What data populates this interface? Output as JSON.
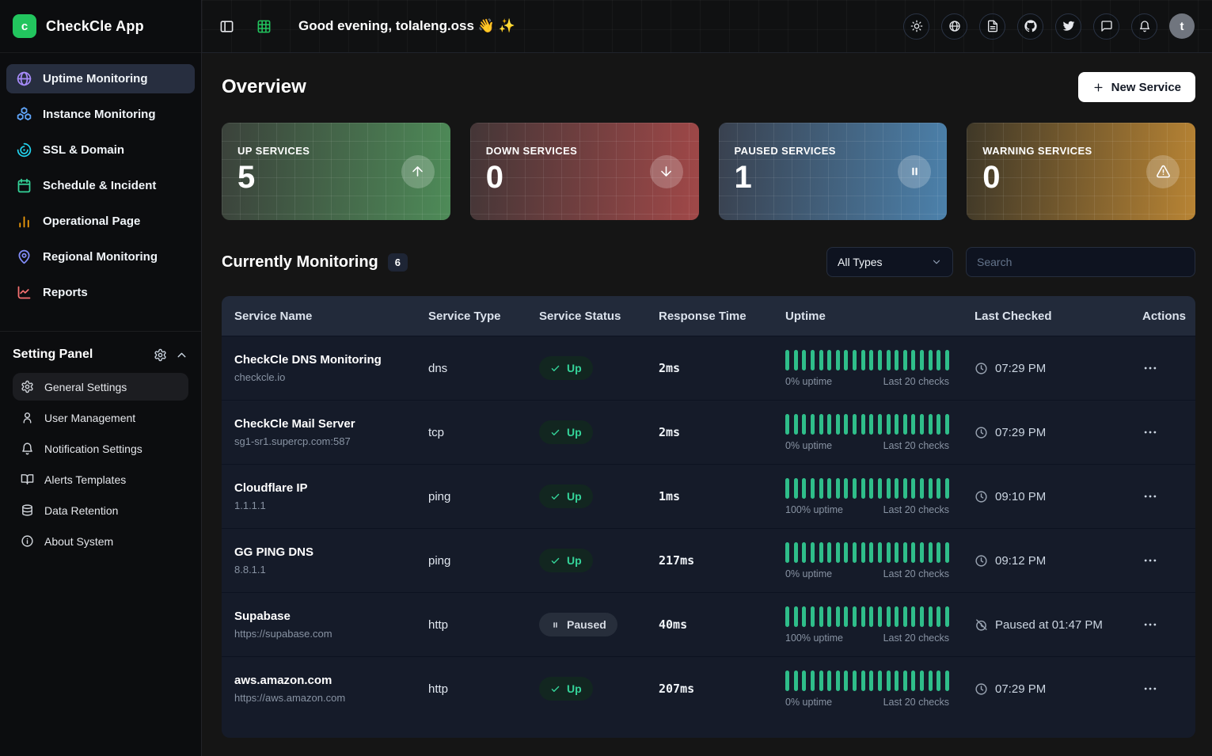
{
  "app": {
    "name": "CheckCle App",
    "logo_letter": "c",
    "logo_color": "#22c55e"
  },
  "sidebar": {
    "nav": [
      {
        "label": "Uptime Monitoring",
        "icon": "globe",
        "icon_color": "#a78bfa",
        "active": true
      },
      {
        "label": "Instance Monitoring",
        "icon": "boxes",
        "icon_color": "#60a5fa",
        "active": false
      },
      {
        "label": "SSL & Domain",
        "icon": "radar",
        "icon_color": "#22d3ee",
        "active": false
      },
      {
        "label": "Schedule & Incident",
        "icon": "calendar",
        "icon_color": "#34d399",
        "active": false
      },
      {
        "label": "Operational Page",
        "icon": "bar-chart",
        "icon_color": "#f59e0b",
        "active": false
      },
      {
        "label": "Regional Monitoring",
        "icon": "map-pin",
        "icon_color": "#818cf8",
        "active": false
      },
      {
        "label": "Reports",
        "icon": "line-chart",
        "icon_color": "#f87171",
        "active": false
      }
    ],
    "settings_panel": {
      "title": "Setting Panel",
      "items": [
        {
          "label": "General Settings",
          "icon": "gear",
          "active": true
        },
        {
          "label": "User Management",
          "icon": "user",
          "active": false
        },
        {
          "label": "Notification Settings",
          "icon": "bell",
          "active": false
        },
        {
          "label": "Alerts Templates",
          "icon": "book-open",
          "active": false
        },
        {
          "label": "Data Retention",
          "icon": "database",
          "active": false
        },
        {
          "label": "About System",
          "icon": "info",
          "active": false
        }
      ]
    }
  },
  "header": {
    "greeting": "Good evening, tolaleng.oss 👋 ✨",
    "avatar_letter": "t",
    "actions": [
      {
        "icon": "sun",
        "name": "theme-toggle-button"
      },
      {
        "icon": "globe",
        "name": "language-button"
      },
      {
        "icon": "file-text",
        "name": "docs-button"
      },
      {
        "icon": "github",
        "name": "github-button"
      },
      {
        "icon": "twitter",
        "name": "twitter-button"
      },
      {
        "icon": "message-square",
        "name": "feedback-button"
      },
      {
        "icon": "bell",
        "name": "notifications-button"
      }
    ]
  },
  "overview": {
    "title": "Overview",
    "new_service_label": "New Service",
    "stats": [
      {
        "label": "UP SERVICES",
        "value": "5",
        "icon": "arrow-up",
        "theme": "green"
      },
      {
        "label": "DOWN SERVICES",
        "value": "0",
        "icon": "arrow-down",
        "theme": "red"
      },
      {
        "label": "PAUSED SERVICES",
        "value": "1",
        "icon": "pause",
        "theme": "blue"
      },
      {
        "label": "WARNING SERVICES",
        "value": "0",
        "icon": "alert-triangle",
        "theme": "amber"
      }
    ]
  },
  "monitoring": {
    "title": "Currently Monitoring",
    "count": "6",
    "filter_value": "All Types",
    "search_placeholder": "Search",
    "table": {
      "columns": [
        "Service Name",
        "Service Type",
        "Service Status",
        "Response Time",
        "Uptime",
        "Last Checked",
        "Actions"
      ],
      "bar_count": 20,
      "bar_color": "#2fbe8a",
      "rows": [
        {
          "name": "CheckCle DNS Monitoring",
          "host": "checkcle.io",
          "type": "dns",
          "status": "Up",
          "response": "2ms",
          "uptime": "0% uptime",
          "checks": "Last 20 checks",
          "last_checked": "07:29 PM",
          "paused": false
        },
        {
          "name": "CheckCle Mail Server",
          "host": "sg1-sr1.supercp.com:587",
          "type": "tcp",
          "status": "Up",
          "response": "2ms",
          "uptime": "0% uptime",
          "checks": "Last 20 checks",
          "last_checked": "07:29 PM",
          "paused": false
        },
        {
          "name": "Cloudflare IP",
          "host": "1.1.1.1",
          "type": "ping",
          "status": "Up",
          "response": "1ms",
          "uptime": "100% uptime",
          "checks": "Last 20 checks",
          "last_checked": "09:10 PM",
          "paused": false
        },
        {
          "name": "GG PING DNS",
          "host": "8.8.1.1",
          "type": "ping",
          "status": "Up",
          "response": "217ms",
          "uptime": "0% uptime",
          "checks": "Last 20 checks",
          "last_checked": "09:12 PM",
          "paused": false
        },
        {
          "name": "Supabase",
          "host": "https://supabase.com",
          "type": "http",
          "status": "Paused",
          "response": "40ms",
          "uptime": "100% uptime",
          "checks": "Last 20 checks",
          "last_checked": "Paused at 01:47 PM",
          "paused": true
        },
        {
          "name": "aws.amazon.com",
          "host": "https://aws.amazon.com",
          "type": "http",
          "status": "Up",
          "response": "207ms",
          "uptime": "0% uptime",
          "checks": "Last 20 checks",
          "last_checked": "07:29 PM",
          "paused": false
        }
      ]
    }
  }
}
